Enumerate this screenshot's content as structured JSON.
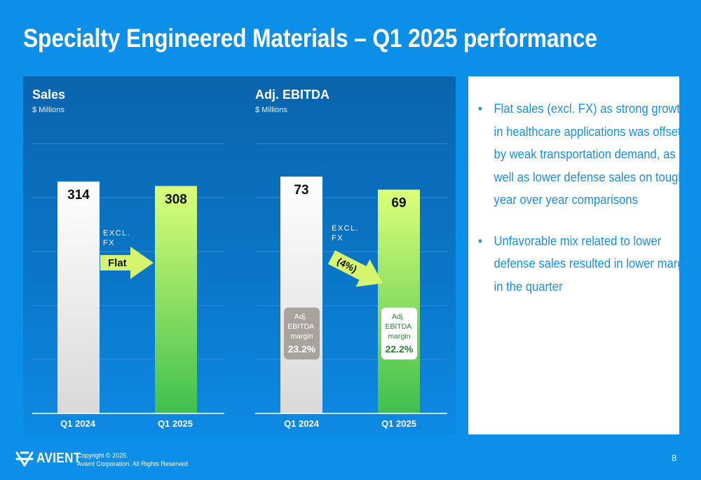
{
  "title": "Specialty Engineered Materials – Q1 2025 performance",
  "charts": {
    "sales": {
      "title": "Sales",
      "unit": "$ Millions",
      "categories": [
        "Q1 2024",
        "Q1 2025"
      ],
      "values": [
        314,
        308
      ],
      "value_labels": [
        "314",
        "308"
      ],
      "change_note": "EXCL.\nFX",
      "change_label": "Flat"
    },
    "ebitda": {
      "title": "Adj. EBITDA",
      "unit": "$ Millions",
      "categories": [
        "Q1 2024",
        "Q1 2025"
      ],
      "values": [
        73,
        69
      ],
      "value_labels": [
        "73",
        "69"
      ],
      "change_note": "EXCL.\nFX",
      "change_label": "(4%)",
      "margin_caption": "Adj.\nEBITDA\nmargin",
      "margins": [
        "23.2%",
        "22.2%"
      ]
    }
  },
  "chart_data": [
    {
      "type": "bar",
      "title": "Sales",
      "ylabel": "$ Millions",
      "categories": [
        "Q1 2024",
        "Q1 2025"
      ],
      "values": [
        314,
        308
      ],
      "annotations": [
        "EXCL. FX",
        "Flat"
      ]
    },
    {
      "type": "bar",
      "title": "Adj. EBITDA",
      "ylabel": "$ Millions",
      "categories": [
        "Q1 2024",
        "Q1 2025"
      ],
      "values": [
        73,
        69
      ],
      "annotations": [
        "EXCL. FX",
        "(4%)",
        "Adj. EBITDA margin 23.2%",
        "Adj. EBITDA margin 22.2%"
      ]
    }
  ],
  "bullets": [
    "Flat sales (excl. FX) as strong growth in healthcare applications was offset by weak transportation demand, as well as lower defense sales on tough year over year comparisons",
    "Unfavorable mix related to lower defense sales resulted in lower margin in the quarter"
  ],
  "footer": {
    "logo_text": "AVIENT",
    "copyright_line1": "Copyright © 2025.",
    "copyright_line2": "Avient Corporation. All Rights Reserved",
    "page_number": "8"
  },
  "colors": {
    "background": "#0b8fe8",
    "panel": "#0a6ebd",
    "bar_prior": "#f2f2f2",
    "bar_current": "#8edc62",
    "arrow": "#d6f56c",
    "margin_prior_box": "#a8a49d",
    "text_blue": "#1a8fe3"
  }
}
